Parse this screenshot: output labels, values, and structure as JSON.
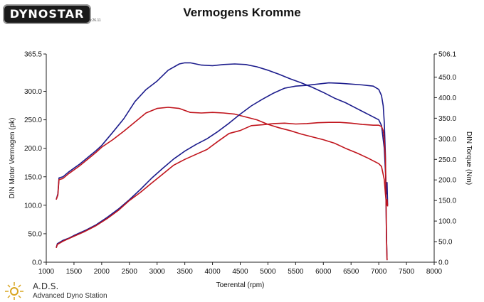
{
  "brand": {
    "logo_text": "DYNOSTAR",
    "logo_sub": "v.26.11"
  },
  "footer": {
    "abbr": "A.D.S.",
    "name": "Advanced Dyno Station"
  },
  "chart_data": {
    "type": "line",
    "title": "Vermogens Kromme",
    "xlabel": "Toerental (rpm)",
    "ylabel": "DIN Motor Vermogen (pk)",
    "y2label": "DIN Torque (Nm)",
    "xlim": [
      1000,
      8000
    ],
    "ylim": [
      0,
      365.5
    ],
    "y2lim": [
      0,
      506.1
    ],
    "x_ticks": [
      "1000",
      "1500",
      "2000",
      "2500",
      "3000",
      "3500",
      "4000",
      "4500",
      "5000",
      "5500",
      "6000",
      "6500",
      "7000",
      "7500",
      "8000"
    ],
    "y_ticks": [
      "0.0",
      "50.0",
      "100.0",
      "150.0",
      "200.0",
      "250.0",
      "300.0",
      "365.5"
    ],
    "y2_ticks": [
      "0.0",
      "50.0",
      "100.0",
      "150.0",
      "200.0",
      "250.0",
      "300.0",
      "350.0",
      "400.0",
      "450.0",
      "506.1"
    ],
    "grid": false,
    "colors": {
      "blue": "#1c1c8c",
      "red": "#c0141c"
    },
    "series": [
      {
        "axis": "left",
        "color": "#1c1c8c",
        "x": [
          1180,
          1210,
          1230,
          1300,
          1400,
          1500,
          1600,
          1700,
          1800,
          1900,
          2000,
          2200,
          2400,
          2600,
          2800,
          3000,
          3200,
          3400,
          3500,
          3600,
          3800,
          4000,
          4200,
          4400,
          4600,
          4800,
          5000,
          5200,
          5400,
          5600,
          5800,
          6000,
          6200,
          6400,
          6600,
          6800,
          7000,
          7050,
          7100,
          7120,
          7140,
          7150,
          7160
        ],
        "y": [
          110,
          120,
          148,
          150,
          158,
          165,
          172,
          180,
          188,
          196,
          205,
          228,
          252,
          282,
          303,
          318,
          337,
          348,
          350,
          350,
          346,
          345,
          347,
          348,
          347,
          343,
          337,
          330,
          322,
          315,
          307,
          298,
          288,
          280,
          270,
          260,
          250,
          240,
          200,
          160,
          120,
          140,
          100
        ]
      },
      {
        "axis": "left",
        "color": "#c0141c",
        "x": [
          1180,
          1210,
          1230,
          1300,
          1400,
          1500,
          1600,
          1700,
          1800,
          1900,
          2000,
          2200,
          2400,
          2600,
          2800,
          3000,
          3200,
          3400,
          3600,
          3800,
          4000,
          4200,
          4400,
          4600,
          4800,
          5000,
          5200,
          5400,
          5600,
          5800,
          6000,
          6200,
          6400,
          6600,
          6800,
          7000,
          7050,
          7100,
          7120,
          7140,
          7150,
          7160
        ],
        "y": [
          110,
          118,
          145,
          147,
          155,
          162,
          169,
          177,
          185,
          193,
          202,
          215,
          230,
          246,
          262,
          270,
          272,
          270,
          263,
          262,
          263,
          262,
          260,
          255,
          250,
          242,
          236,
          231,
          225,
          220,
          215,
          209,
          200,
          192,
          183,
          173,
          168,
          145,
          120,
          100,
          110,
          98
        ]
      },
      {
        "axis": "right",
        "color": "#1c1c8c",
        "x": [
          1180,
          1200,
          1300,
          1400,
          1500,
          1700,
          1900,
          2100,
          2300,
          2500,
          2700,
          2900,
          3100,
          3300,
          3500,
          3700,
          3900,
          4100,
          4300,
          4500,
          4700,
          4900,
          5100,
          5300,
          5500,
          5700,
          5900,
          6100,
          6300,
          6500,
          6700,
          6900,
          7000,
          7050,
          7080,
          7100,
          7120,
          7130,
          7140,
          7150
        ],
        "y": [
          35,
          45,
          53,
          58,
          65,
          77,
          91,
          109,
          129,
          152,
          177,
          204,
          228,
          251,
          270,
          286,
          300,
          318,
          338,
          360,
          380,
          396,
          411,
          423,
          428,
          430,
          433,
          436,
          435,
          433,
          431,
          428,
          420,
          405,
          380,
          340,
          260,
          150,
          60,
          5
        ]
      },
      {
        "axis": "right",
        "color": "#c0141c",
        "x": [
          1180,
          1200,
          1300,
          1400,
          1500,
          1700,
          1900,
          2100,
          2300,
          2500,
          2700,
          2900,
          3100,
          3300,
          3500,
          3700,
          3900,
          4100,
          4300,
          4500,
          4700,
          4900,
          5100,
          5300,
          5500,
          5700,
          5900,
          6100,
          6300,
          6500,
          6700,
          6900,
          7000,
          7050,
          7080,
          7100,
          7120,
          7130,
          7140,
          7150
        ],
        "y": [
          35,
          43,
          51,
          57,
          63,
          75,
          89,
          106,
          126,
          150,
          170,
          192,
          214,
          236,
          250,
          262,
          274,
          294,
          313,
          320,
          332,
          334,
          337,
          338,
          336,
          337,
          339,
          340,
          340,
          338,
          335,
          333,
          333,
          330,
          320,
          300,
          250,
          160,
          60,
          5
        ]
      }
    ]
  }
}
